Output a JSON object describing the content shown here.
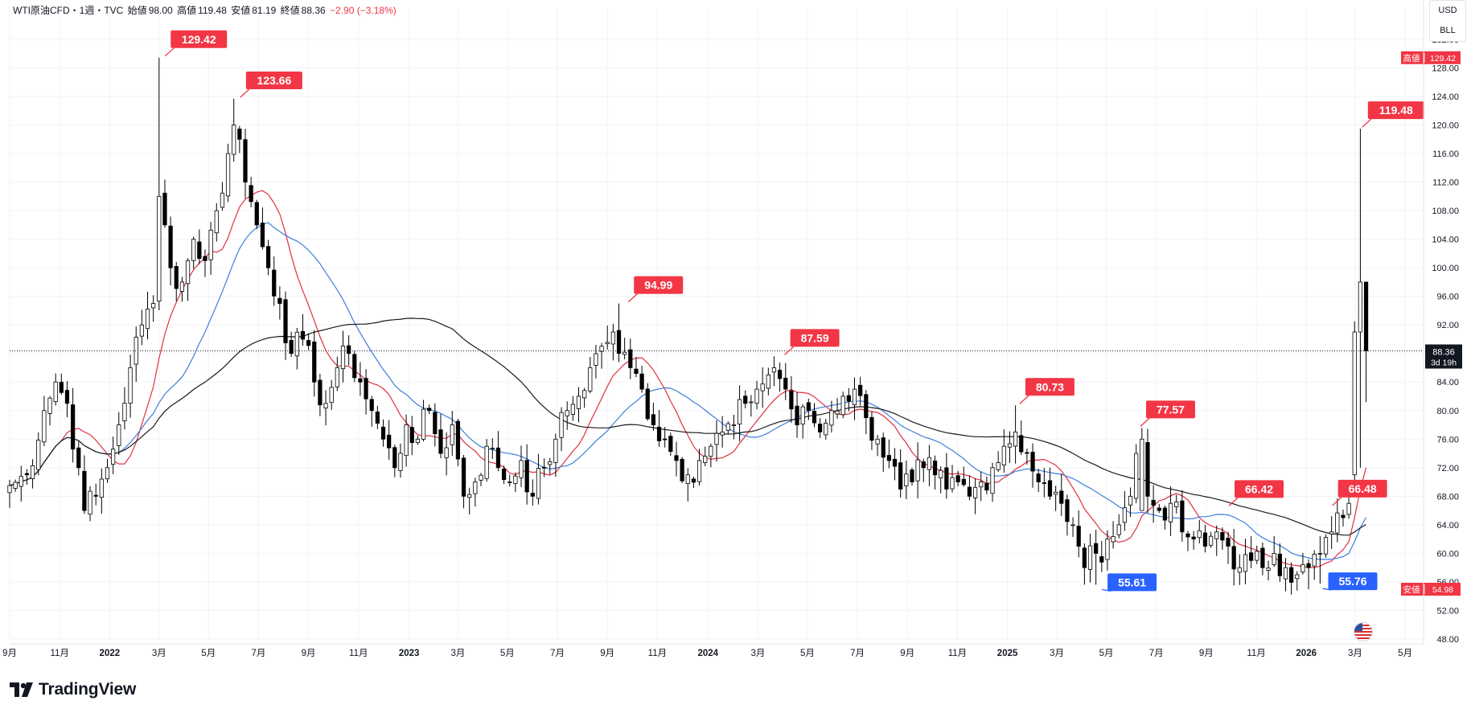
{
  "legend": {
    "symbol": "WTI原油CFD・1週・TVC",
    "open_label": "始値",
    "open": "98.00",
    "high_label": "高値",
    "high": "119.48",
    "low_label": "安値",
    "low": "81.19",
    "close_label": "終値",
    "close": "88.36",
    "change": "−2.90 (−3.18%)"
  },
  "unit": {
    "currency": "USD",
    "unit": "BLL"
  },
  "brand": {
    "name": "TradingView"
  },
  "colors": {
    "up": "#ffffff",
    "down": "#000000",
    "ma_fast": "#e03040",
    "ma_mid": "#3d7fd9",
    "ma_slow": "#1a1a1a",
    "label_high": "#f23645",
    "label_low": "#2962ff"
  },
  "chart_data": {
    "type": "candlestick",
    "title": "",
    "ylim": [
      48,
      133
    ],
    "y_ticks": [
      "132.00",
      "128.00",
      "124.00",
      "120.00",
      "116.00",
      "112.00",
      "108.00",
      "104.00",
      "100.00",
      "96.00",
      "92.00",
      "88.00",
      "84.00",
      "80.00",
      "76.00",
      "72.00",
      "68.00",
      "64.00",
      "60.00",
      "56.00",
      "52.00",
      "48.00"
    ],
    "x_ticks": [
      {
        "label": "9月",
        "t": 0,
        "bold": false
      },
      {
        "label": "11月",
        "t": 8.7,
        "bold": false
      },
      {
        "label": "2022",
        "t": 17.4,
        "bold": true
      },
      {
        "label": "3月",
        "t": 26,
        "bold": false
      },
      {
        "label": "5月",
        "t": 34.6,
        "bold": false
      },
      {
        "label": "7月",
        "t": 43.3,
        "bold": false
      },
      {
        "label": "9月",
        "t": 52,
        "bold": false
      },
      {
        "label": "11月",
        "t": 60.7,
        "bold": false
      },
      {
        "label": "2023",
        "t": 69.5,
        "bold": true
      },
      {
        "label": "3月",
        "t": 78,
        "bold": false
      },
      {
        "label": "5月",
        "t": 86.6,
        "bold": false
      },
      {
        "label": "7月",
        "t": 95.3,
        "bold": false
      },
      {
        "label": "9月",
        "t": 104,
        "bold": false
      },
      {
        "label": "11月",
        "t": 112.7,
        "bold": false
      },
      {
        "label": "2024",
        "t": 121.5,
        "bold": true
      },
      {
        "label": "3月",
        "t": 130.2,
        "bold": false
      },
      {
        "label": "5月",
        "t": 138.8,
        "bold": false
      },
      {
        "label": "7月",
        "t": 147.5,
        "bold": false
      },
      {
        "label": "9月",
        "t": 156.2,
        "bold": false
      },
      {
        "label": "11月",
        "t": 164.9,
        "bold": false
      },
      {
        "label": "2025",
        "t": 173.6,
        "bold": true
      },
      {
        "label": "3月",
        "t": 182.2,
        "bold": false
      },
      {
        "label": "5月",
        "t": 190.8,
        "bold": false
      },
      {
        "label": "7月",
        "t": 199.5,
        "bold": false
      },
      {
        "label": "9月",
        "t": 208.2,
        "bold": false
      },
      {
        "label": "11月",
        "t": 216.9,
        "bold": false
      },
      {
        "label": "2026",
        "t": 225.6,
        "bold": true
      },
      {
        "label": "3月",
        "t": 234.1,
        "bold": false
      },
      {
        "label": "5月",
        "t": 242.8,
        "bold": false
      }
    ],
    "current_price": {
      "value": 88.36,
      "label": "88.36",
      "countdown": "3d 19h"
    },
    "axis_marks": [
      {
        "label": "高値",
        "value": 129.42,
        "text": "129.42"
      },
      {
        "label": "安値",
        "value": 54.98,
        "text": "54.98"
      }
    ],
    "annotations": [
      {
        "text": "129.42",
        "t": 26.9,
        "value": 129.42,
        "kind": "high"
      },
      {
        "text": "123.66",
        "t": 40.0,
        "value": 123.66,
        "kind": "high"
      },
      {
        "text": "94.99",
        "t": 107.5,
        "value": 94.99,
        "kind": "high"
      },
      {
        "text": "87.59",
        "t": 134.7,
        "value": 87.59,
        "kind": "high"
      },
      {
        "text": "80.73",
        "t": 175.6,
        "value": 80.73,
        "kind": "high"
      },
      {
        "text": "77.57",
        "t": 196.6,
        "value": 77.57,
        "kind": "high"
      },
      {
        "text": "66.42",
        "t": 212.0,
        "value": 66.42,
        "kind": "high"
      },
      {
        "text": "66.48",
        "t": 230.0,
        "value": 66.48,
        "kind": "high"
      },
      {
        "text": "119.48",
        "t": 235.2,
        "value": 119.48,
        "kind": "high"
      },
      {
        "text": "55.61",
        "t": 189.9,
        "value": 55.61,
        "kind": "low"
      },
      {
        "text": "55.76",
        "t": 228.3,
        "value": 55.76,
        "kind": "low"
      }
    ],
    "waypoints_close": [
      [
        0,
        69.5
      ],
      [
        3,
        71
      ],
      [
        6,
        80
      ],
      [
        8,
        84
      ],
      [
        10,
        81
      ],
      [
        12,
        72
      ],
      [
        13,
        66
      ],
      [
        15,
        68
      ],
      [
        17,
        72
      ],
      [
        19,
        78
      ],
      [
        21,
        86
      ],
      [
        23,
        92
      ],
      [
        25,
        95
      ],
      [
        26,
        110
      ],
      [
        27,
        106
      ],
      [
        28,
        100
      ],
      [
        30,
        98
      ],
      [
        32,
        104
      ],
      [
        34,
        101
      ],
      [
        36,
        108
      ],
      [
        38,
        116
      ],
      [
        39,
        120
      ],
      [
        40,
        118
      ],
      [
        41,
        112
      ],
      [
        43,
        106
      ],
      [
        45,
        100
      ],
      [
        47,
        95
      ],
      [
        49,
        88
      ],
      [
        51,
        90
      ],
      [
        53,
        84
      ],
      [
        55,
        81
      ],
      [
        57,
        86
      ],
      [
        59,
        88
      ],
      [
        61,
        84
      ],
      [
        63,
        80
      ],
      [
        65,
        76
      ],
      [
        67,
        72
      ],
      [
        69,
        78
      ],
      [
        71,
        76
      ],
      [
        73,
        80
      ],
      [
        75,
        74
      ],
      [
        77,
        78
      ],
      [
        79,
        68
      ],
      [
        81,
        70
      ],
      [
        83,
        75
      ],
      [
        85,
        72
      ],
      [
        87,
        70
      ],
      [
        89,
        73
      ],
      [
        91,
        68
      ],
      [
        93,
        72
      ],
      [
        95,
        76
      ],
      [
        97,
        80
      ],
      [
        99,
        82
      ],
      [
        101,
        86
      ],
      [
        103,
        89
      ],
      [
        105,
        91
      ],
      [
        106,
        88
      ],
      [
        108,
        86
      ],
      [
        110,
        83
      ],
      [
        112,
        78
      ],
      [
        114,
        76
      ],
      [
        116,
        73
      ],
      [
        118,
        71
      ],
      [
        120,
        73
      ],
      [
        122,
        75
      ],
      [
        124,
        77
      ],
      [
        126,
        78
      ],
      [
        128,
        81
      ],
      [
        130,
        83
      ],
      [
        132,
        85
      ],
      [
        133,
        86
      ],
      [
        135,
        83
      ],
      [
        137,
        78
      ],
      [
        139,
        80
      ],
      [
        141,
        77
      ],
      [
        143,
        80
      ],
      [
        145,
        82
      ],
      [
        147,
        83
      ],
      [
        149,
        79
      ],
      [
        151,
        76
      ],
      [
        153,
        73
      ],
      [
        155,
        69
      ],
      [
        157,
        70
      ],
      [
        159,
        72
      ],
      [
        161,
        71
      ],
      [
        163,
        69
      ],
      [
        165,
        70
      ],
      [
        167,
        68
      ],
      [
        169,
        70
      ],
      [
        171,
        72
      ],
      [
        173,
        75
      ],
      [
        175,
        77
      ],
      [
        177,
        74
      ],
      [
        179,
        70
      ],
      [
        181,
        68
      ],
      [
        183,
        67
      ],
      [
        185,
        64
      ],
      [
        186,
        61
      ],
      [
        187,
        58
      ],
      [
        189,
        60
      ],
      [
        191,
        62
      ],
      [
        193,
        64
      ],
      [
        195,
        68
      ],
      [
        196,
        74
      ],
      [
        197,
        75
      ],
      [
        198,
        68
      ],
      [
        200,
        66
      ],
      [
        202,
        67
      ],
      [
        204,
        63
      ],
      [
        206,
        62
      ],
      [
        208,
        61
      ],
      [
        210,
        63
      ],
      [
        212,
        61
      ],
      [
        214,
        58
      ],
      [
        216,
        59
      ],
      [
        218,
        58
      ],
      [
        220,
        60
      ],
      [
        222,
        58
      ],
      [
        224,
        57
      ],
      [
        226,
        58
      ],
      [
        228,
        60
      ],
      [
        230,
        63
      ],
      [
        232,
        65
      ],
      [
        233,
        67
      ],
      [
        234,
        71
      ],
      [
        235,
        98
      ],
      [
        236,
        88.36
      ]
    ],
    "bars": [],
    "series": [
      {
        "name": "",
        "period": 10,
        "color": "#e03040"
      },
      {
        "name": "",
        "period": 20,
        "color": "#3d7fd9"
      },
      {
        "name": "",
        "period": 52,
        "color": "#1a1a1a"
      }
    ]
  }
}
